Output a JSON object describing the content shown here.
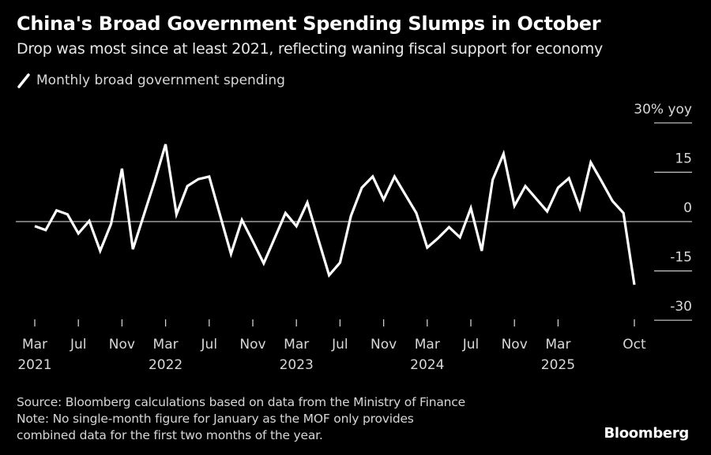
{
  "header": {
    "title": "China's Broad Government Spending Slumps in October",
    "subtitle": "Drop was most since at least 2021, reflecting waning fiscal support for economy"
  },
  "legend": {
    "label": "Monthly broad government spending",
    "icon": "line-swatch-icon"
  },
  "footer": {
    "source": "Source: Bloomberg calculations based on data from the Ministry of Finance",
    "note_line1": "Note: No single-month figure for January as the MOF only provides",
    "note_line2": "combined data for the first two months of the year."
  },
  "branding": {
    "logo": "Bloomberg"
  },
  "colors": {
    "background": "#000000",
    "line": "#ffffff",
    "zero_line": "#bdbdbd",
    "text": "#d8d8d8"
  },
  "chart_data": {
    "type": "line",
    "title": "China's Broad Government Spending Slumps in October",
    "subtitle": "Drop was most since at least 2021, reflecting waning fiscal support for economy",
    "xlabel": "",
    "ylabel": "% yoy",
    "ylim": [
      -30,
      30
    ],
    "yticks": [
      30,
      15,
      0,
      -15,
      -30
    ],
    "ytick_labels": [
      "30% yoy",
      "15",
      "0",
      "-15",
      "-30"
    ],
    "y_axis_side": "right",
    "grid": false,
    "zero_line": true,
    "legend_position": "top-left",
    "xticks": [
      {
        "month": "2021-03",
        "label": "Mar",
        "year_label": "2021"
      },
      {
        "month": "2021-07",
        "label": "Jul",
        "year_label": ""
      },
      {
        "month": "2021-11",
        "label": "Nov",
        "year_label": ""
      },
      {
        "month": "2022-03",
        "label": "Mar",
        "year_label": "2022"
      },
      {
        "month": "2022-07",
        "label": "Jul",
        "year_label": ""
      },
      {
        "month": "2022-11",
        "label": "Nov",
        "year_label": ""
      },
      {
        "month": "2023-03",
        "label": "Mar",
        "year_label": "2023"
      },
      {
        "month": "2023-07",
        "label": "Jul",
        "year_label": ""
      },
      {
        "month": "2023-11",
        "label": "Nov",
        "year_label": ""
      },
      {
        "month": "2024-03",
        "label": "Mar",
        "year_label": "2024"
      },
      {
        "month": "2024-07",
        "label": "Jul",
        "year_label": ""
      },
      {
        "month": "2024-11",
        "label": "Nov",
        "year_label": ""
      },
      {
        "month": "2025-03",
        "label": "Mar",
        "year_label": "2025"
      },
      {
        "month": "2025-10",
        "label": "Oct",
        "year_label": ""
      }
    ],
    "series": [
      {
        "name": "Monthly broad government spending",
        "unit": "% yoy",
        "x": [
          "2021-03",
          "2021-04",
          "2021-05",
          "2021-06",
          "2021-07",
          "2021-08",
          "2021-09",
          "2021-10",
          "2021-11",
          "2021-12",
          "2022-01",
          "2022-02",
          "2022-03",
          "2022-04",
          "2022-05",
          "2022-06",
          "2022-07",
          "2022-08",
          "2022-09",
          "2022-10",
          "2022-11",
          "2022-12",
          "2023-01",
          "2023-02",
          "2023-03",
          "2023-04",
          "2023-05",
          "2023-06",
          "2023-07",
          "2023-08",
          "2023-09",
          "2023-10",
          "2023-11",
          "2023-12",
          "2024-01",
          "2024-02",
          "2024-03",
          "2024-04",
          "2024-05",
          "2024-06",
          "2024-07",
          "2024-08",
          "2024-09",
          "2024-10",
          "2024-11",
          "2024-12",
          "2025-01",
          "2025-02",
          "2025-03",
          "2025-04",
          "2025-05",
          "2025-06",
          "2025-07",
          "2025-08",
          "2025-09",
          "2025-10"
        ],
        "values": [
          -1.4,
          -2.6,
          3.4,
          2.2,
          -3.6,
          0.2,
          -8.9,
          -0.7,
          16.1,
          -8.4,
          null,
          12.3,
          23.5,
          2.2,
          10.8,
          12.9,
          13.7,
          1.9,
          -9.8,
          0.5,
          -6.0,
          -12.7,
          null,
          2.6,
          -1.4,
          5.8,
          -5.3,
          -16.3,
          -12.5,
          1.7,
          10.3,
          13.7,
          6.7,
          13.7,
          null,
          2.6,
          -7.9,
          -5.0,
          -1.7,
          -4.8,
          4.1,
          -8.9,
          12.7,
          20.6,
          4.8,
          10.8,
          null,
          3.1,
          10.3,
          13.2,
          4.1,
          18.0,
          12.2,
          6.2,
          2.6,
          -19.2
        ]
      }
    ]
  }
}
